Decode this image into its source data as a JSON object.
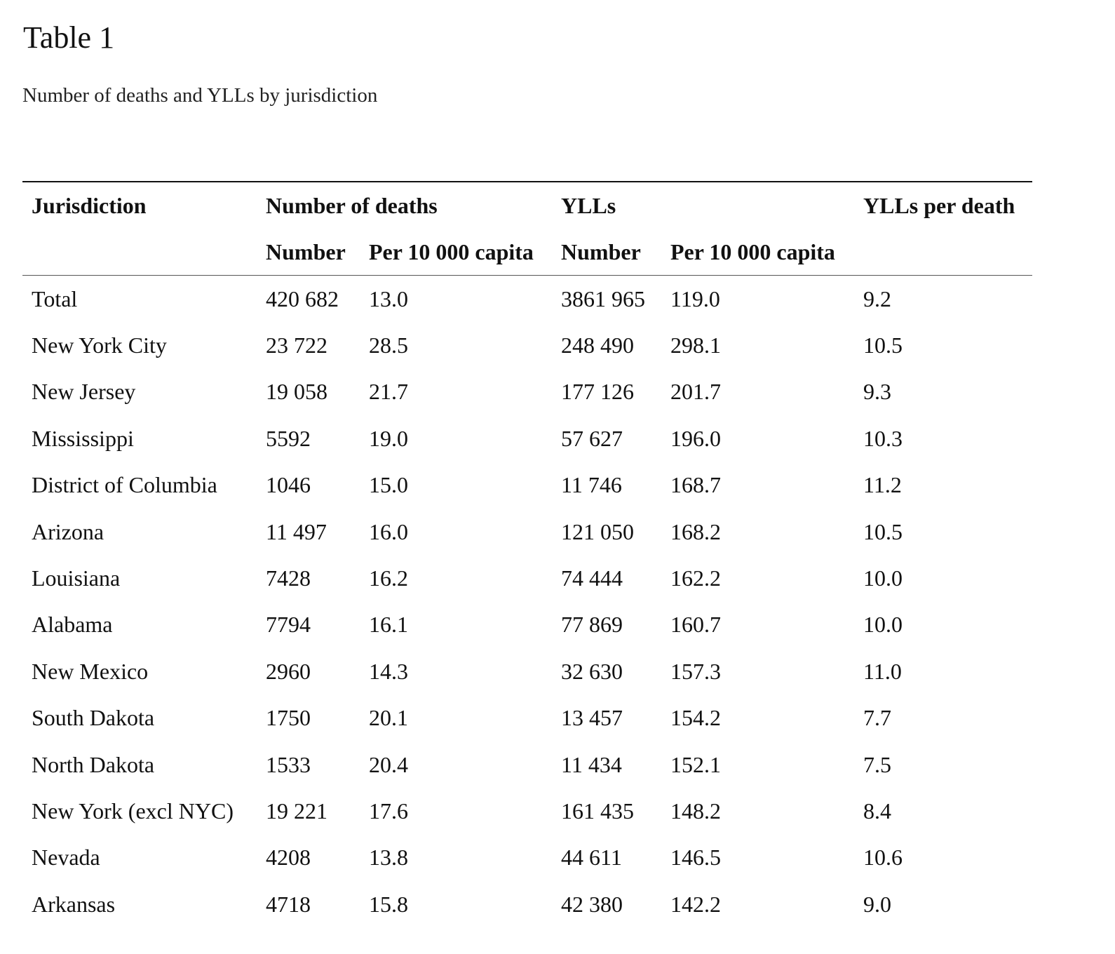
{
  "title": "Table 1",
  "caption": "Number of deaths and YLLs by jurisdiction",
  "table": {
    "group_headers": {
      "jurisdiction": "Jurisdiction",
      "deaths": "Number of deaths",
      "ylls": "YLLs",
      "ylls_per_death": "YLLs per death"
    },
    "sub_headers": {
      "deaths_number": "Number",
      "deaths_per_capita": "Per 10 000 capita",
      "ylls_number": "Number",
      "ylls_per_capita": "Per 10 000 capita"
    },
    "rows": [
      {
        "jurisdiction": "Total",
        "deaths_number": "420 682",
        "deaths_per_capita": "13.0",
        "ylls_number": "3861 965",
        "ylls_per_capita": "119.0",
        "ylls_per_death": "9.2"
      },
      {
        "jurisdiction": "New York City",
        "deaths_number": "23 722",
        "deaths_per_capita": "28.5",
        "ylls_number": "248 490",
        "ylls_per_capita": "298.1",
        "ylls_per_death": "10.5"
      },
      {
        "jurisdiction": "New Jersey",
        "deaths_number": "19 058",
        "deaths_per_capita": "21.7",
        "ylls_number": "177 126",
        "ylls_per_capita": "201.7",
        "ylls_per_death": "9.3"
      },
      {
        "jurisdiction": "Mississippi",
        "deaths_number": "5592",
        "deaths_per_capita": "19.0",
        "ylls_number": "57 627",
        "ylls_per_capita": "196.0",
        "ylls_per_death": "10.3"
      },
      {
        "jurisdiction": "District of Columbia",
        "deaths_number": "1046",
        "deaths_per_capita": "15.0",
        "ylls_number": "11 746",
        "ylls_per_capita": "168.7",
        "ylls_per_death": "11.2"
      },
      {
        "jurisdiction": "Arizona",
        "deaths_number": "11 497",
        "deaths_per_capita": "16.0",
        "ylls_number": "121 050",
        "ylls_per_capita": "168.2",
        "ylls_per_death": "10.5"
      },
      {
        "jurisdiction": "Louisiana",
        "deaths_number": "7428",
        "deaths_per_capita": "16.2",
        "ylls_number": "74 444",
        "ylls_per_capita": "162.2",
        "ylls_per_death": "10.0"
      },
      {
        "jurisdiction": "Alabama",
        "deaths_number": "7794",
        "deaths_per_capita": "16.1",
        "ylls_number": "77 869",
        "ylls_per_capita": "160.7",
        "ylls_per_death": "10.0"
      },
      {
        "jurisdiction": "New Mexico",
        "deaths_number": "2960",
        "deaths_per_capita": "14.3",
        "ylls_number": "32 630",
        "ylls_per_capita": "157.3",
        "ylls_per_death": "11.0"
      },
      {
        "jurisdiction": "South Dakota",
        "deaths_number": "1750",
        "deaths_per_capita": "20.1",
        "ylls_number": "13 457",
        "ylls_per_capita": "154.2",
        "ylls_per_death": "7.7"
      },
      {
        "jurisdiction": "North Dakota",
        "deaths_number": "1533",
        "deaths_per_capita": "20.4",
        "ylls_number": "11 434",
        "ylls_per_capita": "152.1",
        "ylls_per_death": "7.5"
      },
      {
        "jurisdiction": "New York (excl NYC)",
        "deaths_number": "19 221",
        "deaths_per_capita": "17.6",
        "ylls_number": "161 435",
        "ylls_per_capita": "148.2",
        "ylls_per_death": "8.4"
      },
      {
        "jurisdiction": "Nevada",
        "deaths_number": "4208",
        "deaths_per_capita": "13.8",
        "ylls_number": "44 611",
        "ylls_per_capita": "146.5",
        "ylls_per_death": "10.6"
      },
      {
        "jurisdiction": "Arkansas",
        "deaths_number": "4718",
        "deaths_per_capita": "15.8",
        "ylls_number": "42 380",
        "ylls_per_capita": "142.2",
        "ylls_per_death": "9.0"
      }
    ]
  }
}
